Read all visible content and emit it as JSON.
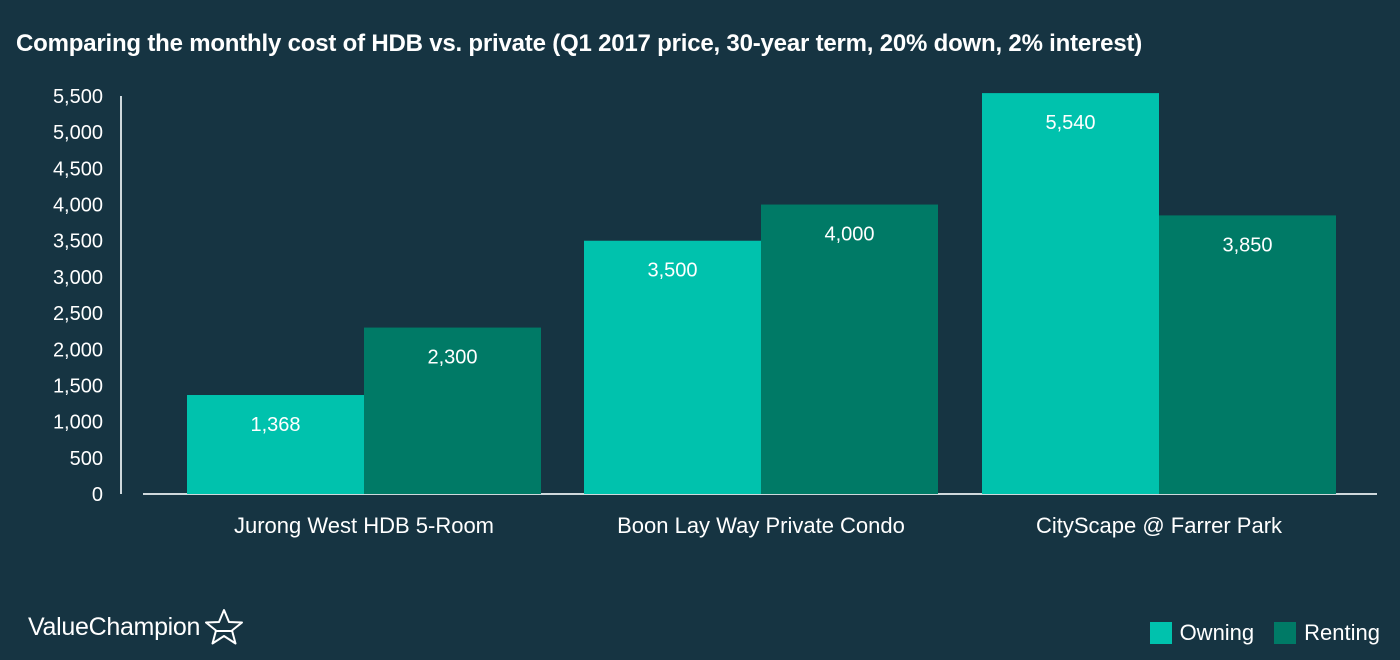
{
  "title": "Comparing the monthly cost of HDB vs. private (Q1 2017 price, 30-year term, 20% down, 2% interest)",
  "brand": {
    "name": "ValueChampion",
    "logo_icon": "star-outline-icon"
  },
  "colors": {
    "background": "#163442",
    "owning": "#00c2ad",
    "renting": "#007a66",
    "axis": "#cfd8dc",
    "text": "#ffffff"
  },
  "chart_data": {
    "type": "bar",
    "title": "Comparing the monthly cost of HDB vs. private (Q1 2017 price, 30-year term, 20% down, 2% interest)",
    "xlabel": "",
    "ylabel": "",
    "ylim": [
      0,
      5500
    ],
    "yticks": [
      "0",
      "500",
      "1,000",
      "1,500",
      "2,000",
      "2,500",
      "3,000",
      "3,500",
      "4,000",
      "4,500",
      "5,000",
      "5,500"
    ],
    "ytick_values": [
      0,
      500,
      1000,
      1500,
      2000,
      2500,
      3000,
      3500,
      4000,
      4500,
      5000,
      5500
    ],
    "categories": [
      "Jurong West HDB 5-Room",
      "Boon Lay Way Private Condo",
      "CityScape @ Farrer Park"
    ],
    "series": [
      {
        "name": "Owning",
        "values": [
          1368,
          3500,
          5540
        ],
        "labels": [
          "1,368",
          "3,500",
          "5,540"
        ],
        "color": "#00c2ad"
      },
      {
        "name": "Renting",
        "values": [
          2300,
          4000,
          3850
        ],
        "labels": [
          "2,300",
          "4,000",
          "3,850"
        ],
        "color": "#007a66"
      }
    ],
    "grid": false,
    "legend": "bottom-right"
  }
}
